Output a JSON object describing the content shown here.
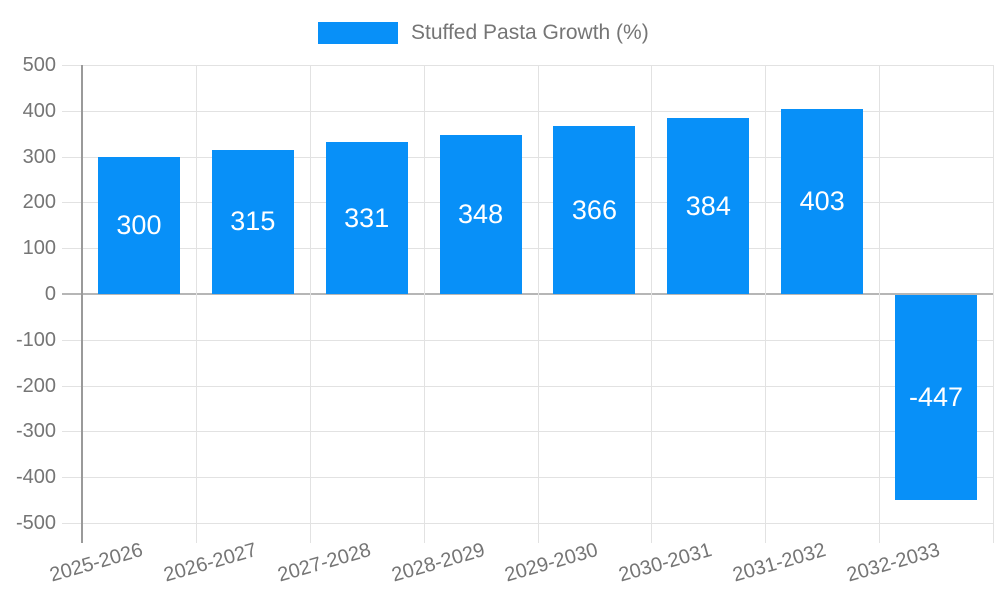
{
  "legend": {
    "label": "Stuffed Pasta Growth (%)"
  },
  "colors": {
    "bar": "#0890f8",
    "axis_text": "#757575",
    "grid": "#e2e2e2",
    "zero_line": "#b6b6b6",
    "axis_line": "#9a9a9a",
    "value_label": "#ffffff",
    "background": "#ffffff"
  },
  "chart_data": {
    "type": "bar",
    "title": "Stuffed Pasta Growth (%)",
    "categories": [
      "2025-2026",
      "2026-2027",
      "2027-2028",
      "2028-2029",
      "2029-2030",
      "2030-2031",
      "2031-2032",
      "2032-2033"
    ],
    "series": [
      {
        "name": "Stuffed Pasta Growth (%)",
        "values": [
          300,
          315,
          331,
          348,
          366,
          384,
          403,
          -447
        ]
      }
    ],
    "value_labels": [
      "300",
      "315",
      "331",
      "348",
      "366",
      "384",
      "403",
      "-447"
    ],
    "xlabel": "",
    "ylabel": "",
    "ylim": [
      -500,
      500
    ],
    "yticks": [
      500,
      400,
      300,
      200,
      100,
      0,
      -100,
      -200,
      -300,
      -400,
      -500
    ],
    "grid": "both",
    "legend_position": "top",
    "x_label_rotation_deg": -16,
    "bar_label_position": "center"
  }
}
